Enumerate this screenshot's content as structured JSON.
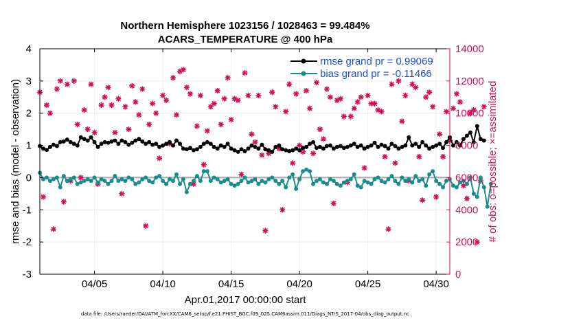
{
  "chart_data": {
    "type": "line",
    "title_line1": "Northern Hemisphere 1023156 / 1028463 = 99.484%",
    "title_line2": "ACARS_TEMPERATURE @ 400 hPa",
    "xlabel": "Apr.01,2017 00:00:00 start",
    "ylabel": "rmse and bias (model - observation)",
    "ylabel_right": "# of obs: o=possible; ×=assimilated",
    "footer": "data file: /Users/raeder/DAI/ATM_forcXX/CAM6_setup/f.e21.FHIST_BGC.f09_025.CAM6assim.011/Diags_NTrS_2017-04/obs_diag_output.nc",
    "xlim": [
      1,
      31
    ],
    "ylim": [
      -3,
      4
    ],
    "ylim_right": [
      0,
      14000
    ],
    "x_ticks": [
      5,
      10,
      15,
      20,
      25,
      30
    ],
    "x_tick_labels": [
      "04/05",
      "04/10",
      "04/15",
      "04/20",
      "04/25",
      "04/30"
    ],
    "y_ticks": [
      -3,
      -2,
      -1,
      0,
      1,
      2,
      3,
      4
    ],
    "y_tick_labels": [
      "-3",
      "-2",
      "-1",
      "0",
      "1",
      "2",
      "3",
      "4"
    ],
    "y_ticks_right": [
      0,
      2000,
      4000,
      6000,
      8000,
      10000,
      12000,
      14000
    ],
    "y_tick_labels_right": [
      "0",
      "2000",
      "4000",
      "6000",
      "8000",
      "10000",
      "12000",
      "14000"
    ],
    "x_start": 1.0,
    "x_step": 0.25,
    "series": [
      {
        "name": "rmse",
        "legend": "rmse grand pr = 0.99069",
        "color": "#000000",
        "values": [
          0.98,
          0.9,
          0.86,
          0.95,
          1.02,
          0.98,
          1.1,
          1.12,
          1.18,
          1.1,
          1.05,
          1.0,
          1.25,
          1.2,
          1.15,
          1.25,
          1.1,
          0.95,
          1.05,
          1.1,
          1.08,
          1.12,
          1.15,
          1.05,
          1.15,
          1.1,
          1.02,
          1.08,
          1.15,
          1.2,
          1.12,
          1.05,
          1.1,
          1.02,
          1.05,
          0.95,
          1.0,
          1.05,
          1.1,
          1.0,
          1.15,
          1.05,
          0.9,
          0.88,
          0.92,
          0.85,
          0.88,
          0.95,
          1.05,
          1.1,
          1.05,
          0.95,
          0.9,
          1.0,
          0.95,
          1.05,
          0.9,
          0.85,
          0.8,
          0.88,
          0.82,
          0.9,
          1.0,
          0.95,
          0.9,
          1.02,
          0.88,
          0.85,
          0.8,
          0.95,
          1.0,
          0.88,
          0.85,
          0.82,
          0.85,
          0.9,
          0.85,
          0.92,
          0.95,
          1.05,
          1.1,
          0.92,
          0.95,
          0.9,
          0.98,
          1.0,
          0.9,
          0.95,
          0.98,
          0.92,
          0.95,
          1.0,
          1.05,
          0.95,
          1.0,
          0.9,
          0.95,
          1.0,
          1.08,
          0.95,
          1.02,
          0.98,
          0.9,
          1.05,
          0.98,
          0.9,
          0.95,
          1.0,
          1.25,
          1.0,
          1.05,
          0.95,
          1.1,
          1.0,
          0.9,
          0.95,
          1.0,
          1.05,
          0.92,
          1.1,
          1.25,
          1.0,
          1.1,
          1.0,
          1.2,
          1.3,
          1.4,
          1.1,
          1.6,
          1.2,
          1.15
        ]
      },
      {
        "name": "bias",
        "legend": "bias grand pr = -0.11466",
        "color": "#1a8c8c",
        "values": [
          0.15,
          -0.05,
          0.0,
          -0.1,
          -0.05,
          0.0,
          -0.3,
          0.05,
          -0.1,
          -0.05,
          0.0,
          -0.2,
          -0.15,
          -0.1,
          -0.05,
          -0.1,
          0.0,
          -0.15,
          -0.05,
          -0.1,
          -0.2,
          -0.1,
          0.05,
          -0.1,
          -0.05,
          -0.1,
          0.0,
          -0.05,
          -0.2,
          -0.15,
          -0.05,
          0.0,
          -0.1,
          -0.15,
          0.0,
          0.05,
          -0.1,
          -0.2,
          -0.05,
          -0.1,
          0.1,
          -0.2,
          -0.05,
          -0.45,
          -0.2,
          -0.1,
          0.05,
          -0.1,
          0.2,
          0.2,
          -0.1,
          0.0,
          -0.05,
          -0.15,
          -0.1,
          -0.05,
          -0.2,
          -0.25,
          -0.2,
          -0.1,
          0.0,
          -0.15,
          -0.1,
          -0.05,
          -0.2,
          -0.1,
          -0.15,
          -0.05,
          0.0,
          -0.1,
          -0.2,
          -0.1,
          -0.3,
          0.0,
          0.1,
          -0.35,
          -0.05,
          0.2,
          0.25,
          0.2,
          -0.2,
          -0.1,
          -0.05,
          -0.15,
          -0.2,
          -0.05,
          -0.1,
          -0.2,
          -0.25,
          -0.15,
          -0.1,
          -0.05,
          0.1,
          -0.25,
          -0.3,
          -0.1,
          -0.15,
          -0.2,
          -0.05,
          0.0,
          -0.1,
          -0.15,
          -0.05,
          0.05,
          -0.1,
          -0.2,
          0.0,
          -0.1,
          -0.05,
          -0.15,
          0.05,
          -0.1,
          -0.05,
          -0.25,
          0.1,
          0.2,
          -0.1,
          -0.2,
          -0.3,
          -0.1,
          -0.05,
          -0.25,
          -0.3,
          -0.15,
          -0.1,
          -0.2,
          0.0,
          -0.5,
          -0.6,
          0.0,
          -0.3,
          -0.9,
          -0.2
        ]
      }
    ],
    "obs": {
      "name": "# of obs",
      "color": "#d0105a",
      "values": [
        11300,
        4800,
        10500,
        10000,
        2800,
        11500,
        12000,
        4500,
        11800,
        5800,
        12000,
        9300,
        6000,
        10200,
        9000,
        11800,
        8800,
        5600,
        10500,
        11000,
        11600,
        10500,
        8800,
        10900,
        5000,
        10400,
        9000,
        11700,
        10700,
        9900,
        11500,
        3000,
        9300,
        10600,
        10000,
        7200,
        11100,
        10800,
        8100,
        12200,
        9900,
        12600,
        12700,
        11600,
        11200,
        5600,
        9200,
        11100,
        6800,
        8900,
        10400,
        10600,
        11400,
        9300,
        10900,
        12200,
        9600,
        10900,
        10800,
        6200,
        12500,
        11100,
        8700,
        8200,
        11100,
        7400,
        2700,
        7500,
        11300,
        10400,
        7800,
        4000,
        10100,
        11800,
        6900,
        11200,
        8000,
        7600,
        11400,
        10300,
        7500,
        11900,
        9000,
        8400,
        11500,
        11000,
        4400,
        10800,
        10900,
        9800,
        5700,
        9800,
        10300,
        10700,
        11000,
        6600,
        11100,
        10600,
        10600,
        10200,
        10100,
        7300,
        2800,
        11800,
        6900,
        12000,
        9500,
        11100,
        5800,
        11800,
        11600,
        7300,
        4600,
        11000,
        11300,
        10400,
        4800,
        8700,
        7300,
        10100,
        8300,
        10300,
        11200,
        10700,
        5500,
        4700,
        10000,
        10200,
        2000,
        5800,
        10400
      ]
    }
  }
}
